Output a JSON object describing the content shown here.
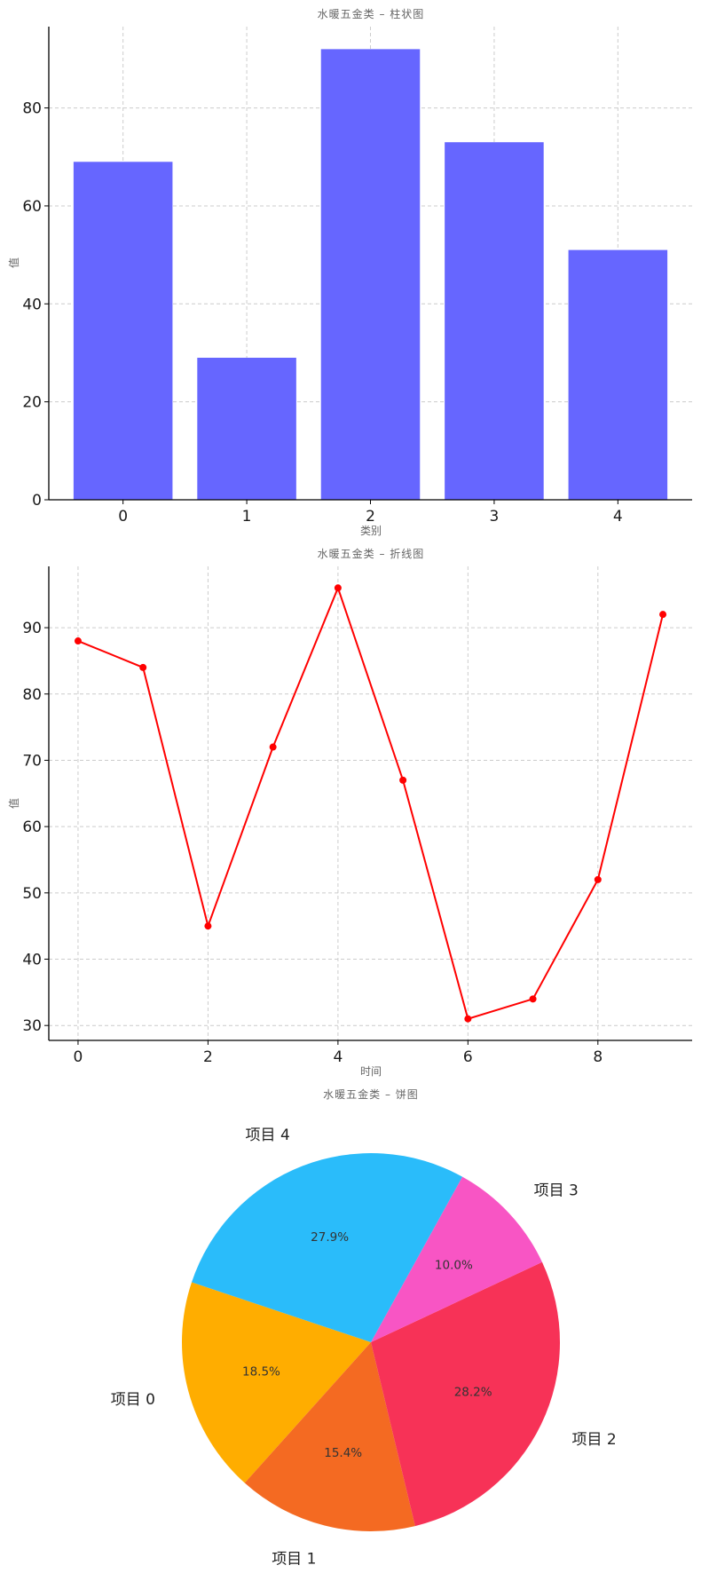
{
  "chart_data": [
    {
      "type": "bar",
      "title": "水暖五金类 – 柱状图",
      "xlabel": "类别",
      "ylabel": "值",
      "categories": [
        "0",
        "1",
        "2",
        "3",
        "4"
      ],
      "values": [
        69,
        29,
        92,
        73,
        51
      ],
      "ylim": [
        0,
        96.6
      ],
      "yticks": [
        0,
        20,
        40,
        60,
        80
      ],
      "grid": true,
      "color": "#6666ff"
    },
    {
      "type": "line",
      "title": "水暖五金类 – 折线图",
      "xlabel": "时间",
      "ylabel": "值",
      "x": [
        0,
        1,
        2,
        3,
        4,
        5,
        6,
        7,
        8,
        9
      ],
      "values": [
        88,
        84,
        45,
        72,
        96,
        67,
        31,
        34,
        52,
        92
      ],
      "xlim": [
        -0.45,
        9.45
      ],
      "ylim": [
        27.75,
        99.25
      ],
      "xticks": [
        0,
        2,
        4,
        6,
        8
      ],
      "yticks": [
        30,
        40,
        50,
        60,
        70,
        80,
        90
      ],
      "grid": true,
      "color": "#ff0000"
    },
    {
      "type": "pie",
      "title": "水暖五金类 – 饼图",
      "labels": [
        "项目 0",
        "项目 1",
        "项目 2",
        "项目 3",
        "项目 4"
      ],
      "values": [
        18.5,
        15.4,
        28.2,
        10.0,
        27.9
      ],
      "percent_labels": [
        "18.5%",
        "15.4%",
        "28.2%",
        "10.0%",
        "27.9%"
      ],
      "colors": [
        "#ffad00",
        "#f46a22",
        "#f73257",
        "#f855c4",
        "#2abcfa"
      ]
    }
  ]
}
